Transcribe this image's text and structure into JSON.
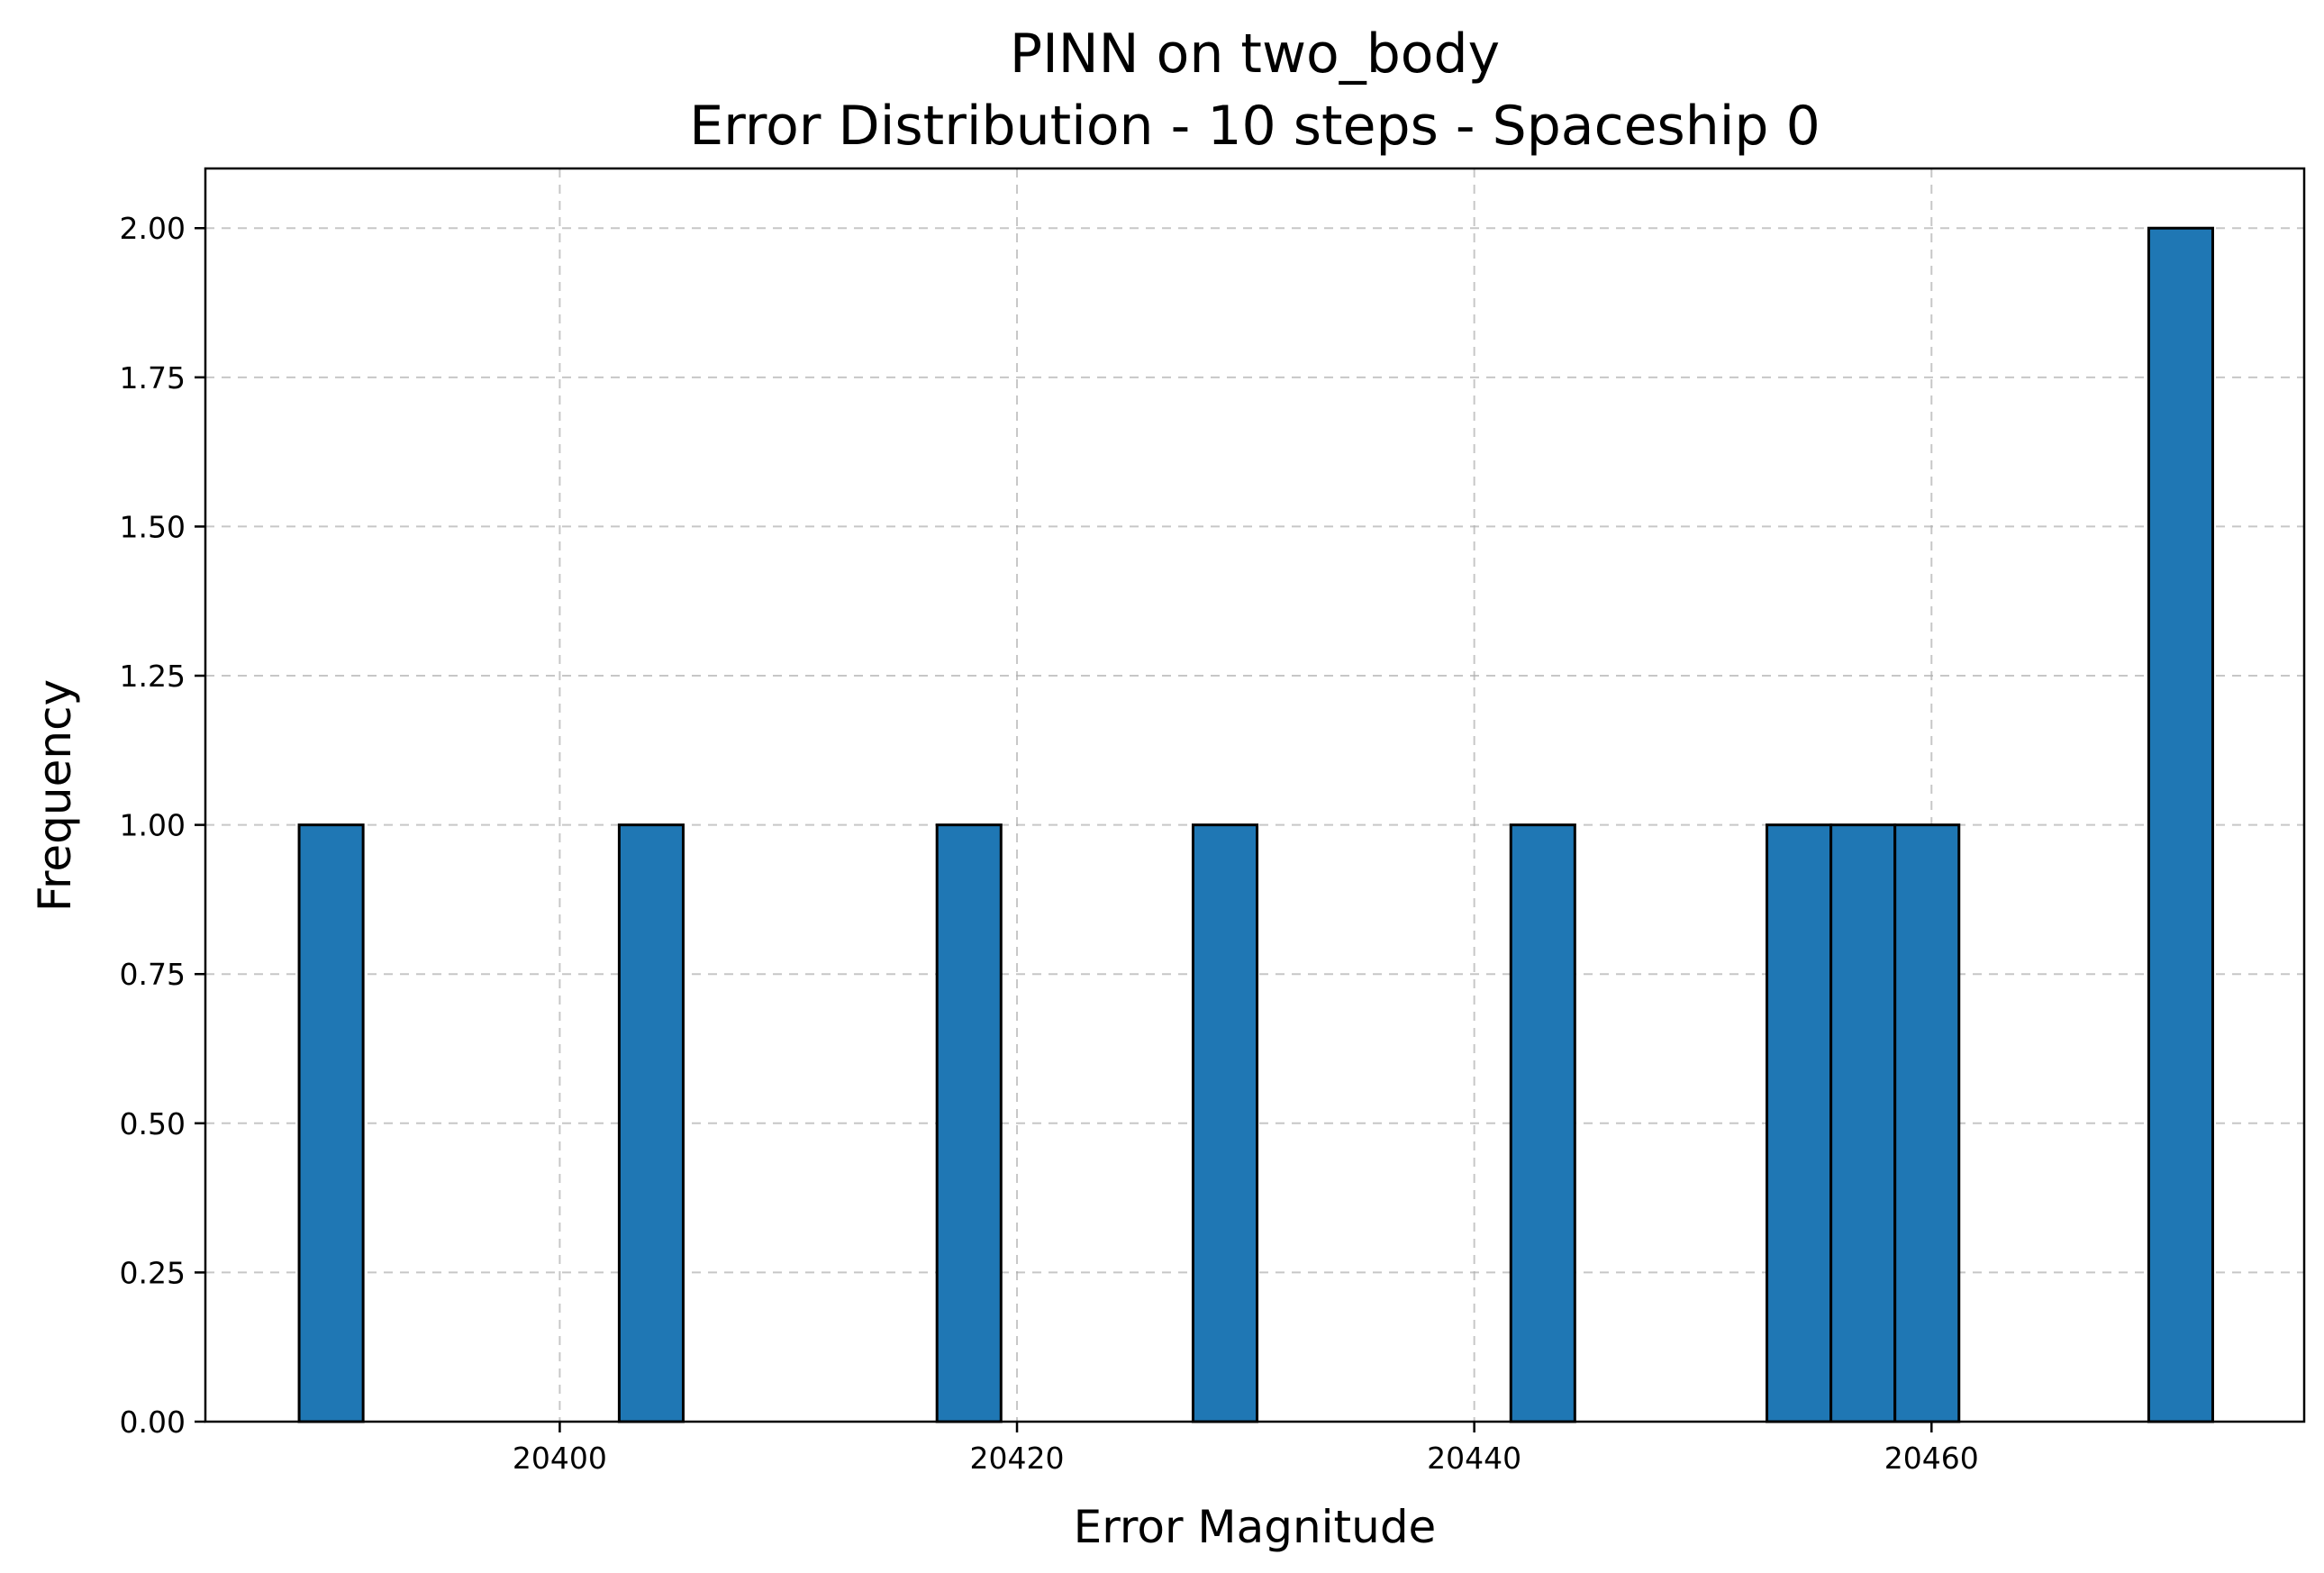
{
  "chart_data": {
    "type": "bar",
    "title": "PINN on two_body",
    "subtitle": "Error Distribution - 10 steps - Spaceship 0",
    "xlabel": "Error Magnitude",
    "ylabel": "Frequency",
    "xlim": [
      20384.5,
      20476.3
    ],
    "ylim": [
      0,
      2.1
    ],
    "xticks": [
      20400,
      20420,
      20440,
      20460
    ],
    "xtick_labels": [
      "20400",
      "20420",
      "20440",
      "20460"
    ],
    "yticks": [
      0,
      0.25,
      0.5,
      0.75,
      1.0,
      1.25,
      1.5,
      1.75,
      2.0
    ],
    "ytick_labels": [
      "0.00",
      "0.25",
      "0.50",
      "0.75",
      "1.00",
      "1.25",
      "1.50",
      "1.75",
      "2.00"
    ],
    "grid": true,
    "bar_color": "#1f77b4",
    "bins": [
      {
        "x0": 20388.6,
        "x1": 20391.4,
        "count": 1
      },
      {
        "x0": 20402.6,
        "x1": 20405.4,
        "count": 1
      },
      {
        "x0": 20416.5,
        "x1": 20419.3,
        "count": 1
      },
      {
        "x0": 20427.7,
        "x1": 20430.5,
        "count": 1
      },
      {
        "x0": 20441.6,
        "x1": 20444.4,
        "count": 1
      },
      {
        "x0": 20452.8,
        "x1": 20455.6,
        "count": 1
      },
      {
        "x0": 20455.6,
        "x1": 20458.4,
        "count": 1
      },
      {
        "x0": 20458.4,
        "x1": 20461.2,
        "count": 1
      },
      {
        "x0": 20469.5,
        "x1": 20472.3,
        "count": 2
      }
    ]
  }
}
